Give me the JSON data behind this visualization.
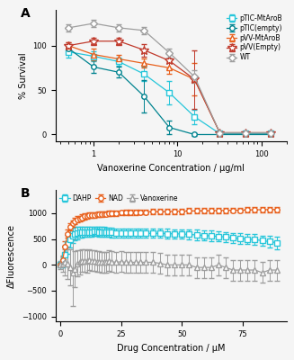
{
  "panel_A": {
    "xlabel": "Vanoxerine Concentration / µg/ml",
    "ylabel": "% Survival",
    "xlim": [
      0.35,
      200
    ],
    "ylim": [
      -8,
      140
    ],
    "yticks": [
      0,
      50,
      100
    ],
    "series": {
      "pTIC-MtAroB": {
        "color": "#26c6da",
        "marker": "s",
        "ms": 4,
        "x": [
          0.5,
          1.0,
          2.0,
          4.0,
          8.0,
          16.0,
          32.0,
          64.0,
          128.0
        ],
        "y": [
          93,
          88,
          82,
          68,
          47,
          20,
          1,
          1,
          1
        ],
        "yerr": [
          7,
          6,
          5,
          8,
          13,
          8,
          2,
          1,
          1
        ]
      },
      "pTIC(empty)": {
        "color": "#00838f",
        "marker": "o",
        "ms": 4,
        "x": [
          0.5,
          1.0,
          2.0,
          4.0,
          8.0,
          16.0,
          32.0,
          64.0,
          128.0
        ],
        "y": [
          97,
          76,
          70,
          43,
          8,
          0,
          0,
          0,
          0
        ],
        "yerr": [
          5,
          7,
          6,
          18,
          8,
          2,
          1,
          1,
          1
        ]
      },
      "pVV-MtAroB": {
        "color": "#e8601c",
        "marker": "^",
        "ms": 5,
        "x": [
          0.5,
          1.0,
          2.0,
          4.0,
          8.0,
          16.0,
          32.0,
          64.0,
          128.0
        ],
        "y": [
          100,
          90,
          85,
          80,
          75,
          62,
          2,
          2,
          2
        ],
        "yerr": [
          4,
          7,
          5,
          5,
          7,
          18,
          2,
          1,
          1
        ]
      },
      "pVV(Empty)": {
        "color": "#c0392b",
        "marker": "*",
        "ms": 7,
        "x": [
          0.5,
          1.0,
          2.0,
          4.0,
          8.0,
          16.0,
          32.0,
          64.0,
          128.0
        ],
        "y": [
          100,
          105,
          105,
          95,
          83,
          62,
          2,
          2,
          2
        ],
        "yerr": [
          4,
          4,
          4,
          7,
          9,
          33,
          2,
          2,
          2
        ]
      },
      "WT": {
        "color": "#9e9e9e",
        "marker": "D",
        "ms": 4,
        "x": [
          0.5,
          1.0,
          2.0,
          4.0,
          8.0,
          16.0,
          32.0,
          64.0,
          128.0
        ],
        "y": [
          120,
          125,
          120,
          117,
          92,
          65,
          2,
          2,
          2
        ],
        "yerr": [
          4,
          4,
          4,
          4,
          5,
          7,
          2,
          2,
          2
        ]
      }
    }
  },
  "panel_B": {
    "xlabel": "Drug Concentration / µM",
    "ylabel": "ΔFluorescence",
    "xlim": [
      -2,
      93
    ],
    "ylim": [
      -1100,
      1450
    ],
    "yticks": [
      -1000,
      -500,
      0,
      500,
      1000
    ],
    "xticks": [
      0,
      25,
      50,
      75
    ],
    "series": {
      "DAHP": {
        "color": "#26c6da",
        "marker": "s",
        "ms": 4,
        "x": [
          0,
          1,
          2,
          3,
          4,
          5,
          6,
          7,
          8,
          9,
          10,
          11,
          12,
          13,
          14,
          15,
          16,
          17,
          18,
          19,
          20,
          21,
          23,
          25,
          27,
          29,
          31,
          33,
          35,
          38,
          41,
          44,
          47,
          50,
          53,
          56,
          59,
          62,
          65,
          68,
          71,
          74,
          77,
          80,
          83,
          86,
          89
        ],
        "y": [
          0,
          50,
          200,
          400,
          500,
          570,
          600,
          620,
          630,
          630,
          640,
          640,
          640,
          640,
          645,
          645,
          640,
          640,
          640,
          630,
          630,
          625,
          620,
          615,
          615,
          615,
          615,
          615,
          610,
          610,
          610,
          605,
          600,
          600,
          590,
          580,
          570,
          560,
          550,
          540,
          520,
          510,
          500,
          490,
          470,
          450,
          430
        ],
        "yerr": [
          30,
          100,
          180,
          180,
          160,
          150,
          130,
          120,
          110,
          100,
          100,
          100,
          100,
          100,
          90,
          90,
          90,
          90,
          90,
          90,
          90,
          90,
          90,
          90,
          90,
          90,
          90,
          90,
          90,
          90,
          90,
          90,
          90,
          90,
          100,
          100,
          100,
          100,
          100,
          100,
          100,
          100,
          100,
          100,
          100,
          110,
          120
        ]
      },
      "NAD": {
        "color": "#e8601c",
        "marker": "o",
        "ms": 4,
        "x": [
          0,
          1,
          2,
          3,
          4,
          5,
          6,
          7,
          8,
          9,
          10,
          11,
          12,
          13,
          14,
          15,
          16,
          17,
          18,
          19,
          20,
          21,
          23,
          25,
          27,
          29,
          31,
          33,
          35,
          38,
          41,
          44,
          47,
          50,
          53,
          56,
          59,
          62,
          65,
          68,
          71,
          74,
          77,
          80,
          83,
          86,
          89
        ],
        "y": [
          0,
          100,
          350,
          600,
          730,
          800,
          850,
          880,
          900,
          920,
          940,
          950,
          960,
          965,
          970,
          975,
          980,
          985,
          990,
          990,
          995,
          1000,
          1005,
          1010,
          1015,
          1020,
          1020,
          1025,
          1025,
          1030,
          1035,
          1035,
          1040,
          1040,
          1045,
          1045,
          1050,
          1050,
          1055,
          1055,
          1060,
          1060,
          1065,
          1065,
          1070,
          1070,
          1075
        ],
        "yerr": [
          30,
          80,
          100,
          80,
          70,
          65,
          60,
          60,
          55,
          55,
          55,
          50,
          50,
          50,
          50,
          50,
          50,
          50,
          50,
          50,
          50,
          50,
          50,
          50,
          50,
          50,
          50,
          50,
          50,
          50,
          50,
          50,
          50,
          50,
          50,
          50,
          50,
          50,
          50,
          50,
          50,
          50,
          50,
          50,
          50,
          50,
          50
        ]
      },
      "Vanoxerine": {
        "color": "#9e9e9e",
        "marker": "^",
        "ms": 5,
        "x": [
          0,
          1,
          2,
          3,
          4,
          5,
          6,
          7,
          8,
          9,
          10,
          11,
          12,
          13,
          14,
          15,
          16,
          17,
          18,
          19,
          20,
          21,
          23,
          25,
          27,
          29,
          31,
          33,
          35,
          38,
          41,
          44,
          47,
          50,
          53,
          56,
          59,
          62,
          65,
          68,
          71,
          74,
          77,
          80,
          83,
          86,
          89
        ],
        "y": [
          0,
          20,
          50,
          30,
          -50,
          -150,
          -80,
          30,
          50,
          80,
          80,
          70,
          100,
          80,
          80,
          60,
          60,
          50,
          50,
          50,
          80,
          60,
          50,
          60,
          50,
          50,
          50,
          50,
          50,
          50,
          30,
          0,
          0,
          0,
          0,
          -50,
          -50,
          -50,
          0,
          -50,
          -100,
          -100,
          -100,
          -100,
          -150,
          -100,
          -100
        ],
        "yerr": [
          80,
          150,
          250,
          300,
          350,
          650,
          350,
          250,
          230,
          220,
          220,
          220,
          200,
          200,
          200,
          200,
          200,
          200,
          200,
          200,
          200,
          200,
          200,
          200,
          200,
          200,
          200,
          200,
          200,
          200,
          200,
          200,
          200,
          200,
          200,
          200,
          200,
          200,
          200,
          200,
          200,
          200,
          200,
          200,
          200,
          200,
          200
        ]
      }
    }
  },
  "bg_color": "#f5f5f5",
  "label_fontsize": 7,
  "tick_fontsize": 6
}
